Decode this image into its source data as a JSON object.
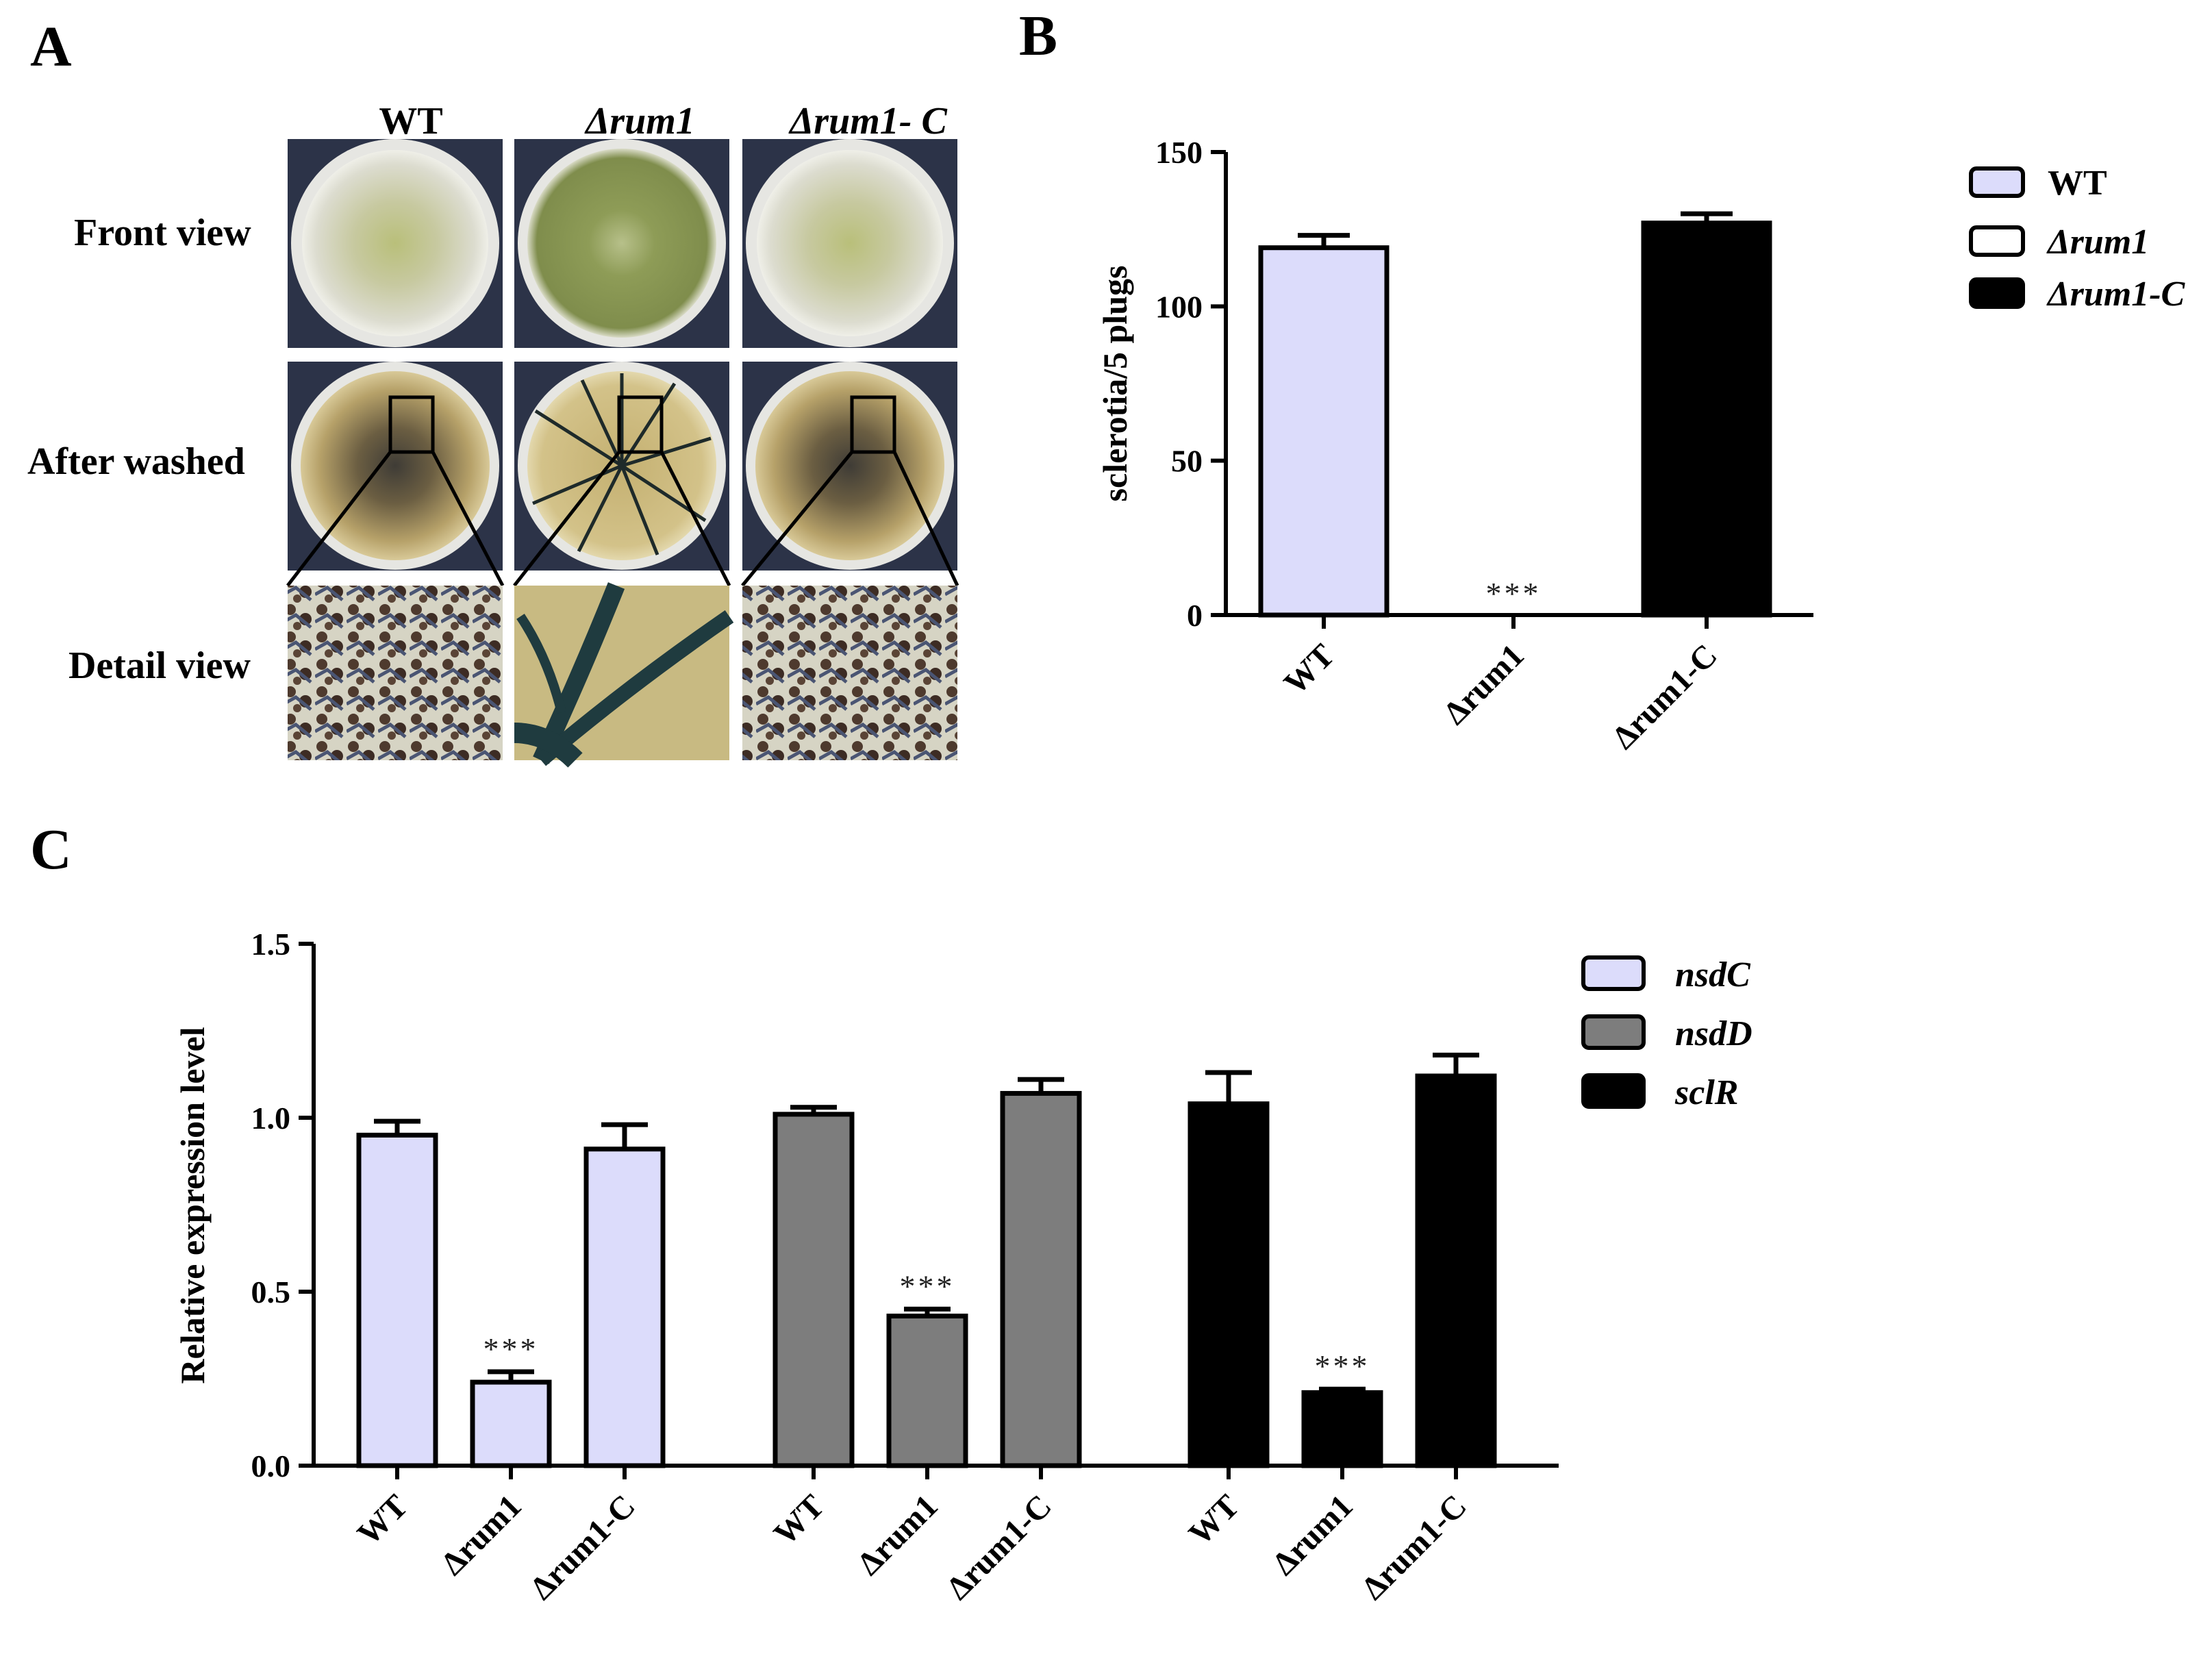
{
  "panels": {
    "a": {
      "letter": "A",
      "columns": [
        "WT",
        "Δrum1",
        "Δrum1- C"
      ],
      "rows": [
        "Front view",
        "After washed",
        "Detail view"
      ]
    },
    "b": {
      "letter": "B"
    },
    "c": {
      "letter": "C"
    }
  },
  "colors": {
    "wt": "#dcdcfb",
    "mutant": "#ffffff",
    "complement": "#000000",
    "nsdC": "#dcdcfb",
    "nsdD": "#7d7d7d",
    "sclR": "#000000"
  },
  "chart_data": [
    {
      "panel": "B",
      "type": "bar",
      "categories": [
        "WT",
        "Δrum1",
        "Δrum1-C"
      ],
      "values": [
        119,
        0,
        127
      ],
      "errors": [
        4,
        0,
        3
      ],
      "significance": [
        "",
        "***",
        ""
      ],
      "ylabel": "sclerotia/5 plugs",
      "ylim": [
        0,
        150
      ],
      "yticks": [
        0,
        50,
        100,
        150
      ],
      "legend": [
        "WT",
        "Δrum1",
        "Δrum1-C"
      ],
      "legend_position": "top-right"
    },
    {
      "panel": "C",
      "type": "bar",
      "categories": [
        "WT",
        "Δrum1",
        "Δrum1-C"
      ],
      "series": [
        {
          "name": "nsdC",
          "values": [
            0.95,
            0.24,
            0.91
          ],
          "errors": [
            0.04,
            0.03,
            0.07
          ]
        },
        {
          "name": "nsdD",
          "values": [
            1.01,
            0.43,
            1.07
          ],
          "errors": [
            0.02,
            0.02,
            0.04
          ]
        },
        {
          "name": "sclR",
          "values": [
            1.04,
            0.21,
            1.12
          ],
          "errors": [
            0.09,
            0.01,
            0.06
          ]
        }
      ],
      "significance": [
        "",
        "***",
        ""
      ],
      "ylabel": "Relative expression level",
      "ylim": [
        0,
        1.5
      ],
      "yticks": [
        "0.0",
        "0.5",
        "1.0",
        "1.5"
      ],
      "legend_position": "top-right"
    }
  ]
}
